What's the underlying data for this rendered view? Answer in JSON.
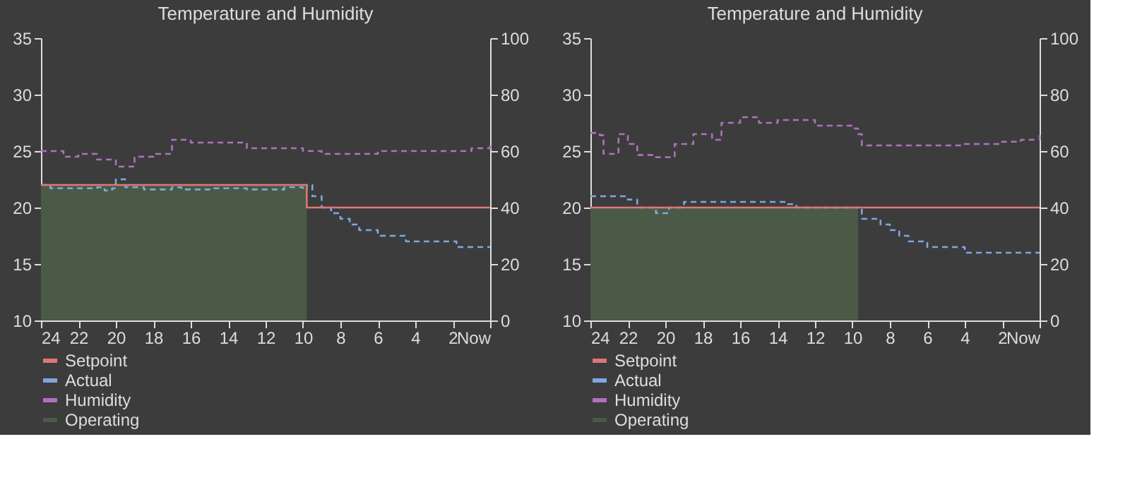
{
  "chart_data": [
    {
      "type": "line",
      "title": "Temperature and Humidity",
      "xlim": [
        24,
        0
      ],
      "xticks": [
        24,
        22,
        20,
        18,
        16,
        14,
        12,
        10,
        8,
        6,
        4,
        2,
        {
          "value": 0,
          "label": "Now"
        }
      ],
      "ylim": [
        10,
        35
      ],
      "yticks": [
        10,
        15,
        20,
        25,
        30,
        35
      ],
      "y2lim": [
        0,
        100
      ],
      "y2ticks": [
        0,
        20,
        40,
        60,
        80,
        100
      ],
      "legend": "bottom",
      "series": [
        {
          "name": "Setpoint",
          "type": "step",
          "color": "#e07777",
          "line_style": "solid",
          "x": [
            24,
            9.8,
            0
          ],
          "values": [
            22,
            20,
            20
          ]
        },
        {
          "name": "Actual",
          "type": "step",
          "color": "#7fa7e0",
          "line_style": "dashed",
          "x": [
            24,
            23.5,
            21,
            20.6,
            20.2,
            20,
            19.5,
            18.5,
            17,
            16.5,
            15,
            13,
            11,
            10,
            9.8,
            9.5,
            9,
            8.5,
            8,
            7.5,
            7,
            6,
            4.5,
            2,
            1.8,
            0
          ],
          "values": [
            22,
            21.7,
            21.8,
            21.5,
            21.7,
            22.5,
            21.8,
            21.6,
            21.8,
            21.6,
            21.7,
            21.6,
            21.8,
            21.6,
            22,
            21,
            20,
            19.5,
            19,
            18.5,
            18,
            17.5,
            17,
            17,
            16.5,
            16.5
          ]
        },
        {
          "name": "Humidity",
          "type": "step",
          "color": "#b070c0",
          "line_style": "dashed",
          "axis": "y2",
          "x": [
            24,
            22.8,
            22,
            21,
            20,
            19,
            18,
            17,
            16,
            15,
            13,
            10,
            9,
            6,
            2,
            1,
            0
          ],
          "values": [
            60,
            58,
            59,
            57,
            54.5,
            58,
            59,
            64,
            63,
            63,
            61,
            60,
            59,
            60,
            60,
            61,
            63
          ]
        },
        {
          "name": "Operating",
          "type": "area",
          "color": "#4a5a46",
          "x": [
            24,
            9.8
          ],
          "values": [
            22,
            22
          ]
        }
      ]
    },
    {
      "type": "line",
      "title": "Temperature and Humidity",
      "xlim": [
        24,
        0
      ],
      "xticks": [
        24,
        22,
        20,
        18,
        16,
        14,
        12,
        10,
        8,
        6,
        4,
        2,
        {
          "value": 0,
          "label": "Now"
        }
      ],
      "ylim": [
        10,
        35
      ],
      "yticks": [
        10,
        15,
        20,
        25,
        30,
        35
      ],
      "y2lim": [
        0,
        100
      ],
      "y2ticks": [
        0,
        20,
        40,
        60,
        80,
        100
      ],
      "legend": "bottom",
      "series": [
        {
          "name": "Setpoint",
          "type": "step",
          "color": "#e07777",
          "line_style": "solid",
          "x": [
            24,
            0
          ],
          "values": [
            20,
            20
          ]
        },
        {
          "name": "Actual",
          "type": "step",
          "color": "#7fa7e0",
          "line_style": "dashed",
          "x": [
            24,
            22.3,
            22,
            21.5,
            20.5,
            19.8,
            19,
            14,
            13.5,
            13,
            9.7,
            9.5,
            8.5,
            8,
            7.5,
            7,
            6,
            4,
            0
          ],
          "values": [
            21,
            21,
            20.7,
            20,
            19.5,
            20,
            20.5,
            20.5,
            20.3,
            20,
            20,
            19,
            18.5,
            18,
            17.5,
            17,
            16.5,
            16,
            16
          ]
        },
        {
          "name": "Humidity",
          "type": "step",
          "color": "#b070c0",
          "line_style": "dashed",
          "axis": "y2",
          "x": [
            24,
            23.5,
            23.3,
            22.5,
            22,
            21.5,
            20.5,
            19.5,
            18.5,
            17.5,
            17,
            16,
            15,
            14,
            12,
            10,
            9.7,
            9.5,
            6.5,
            4,
            2,
            1,
            0
          ],
          "values": [
            66.4,
            65.6,
            59,
            66,
            62.5,
            58.6,
            57.8,
            62.5,
            66,
            64,
            70,
            72,
            70,
            71,
            69,
            68,
            66,
            62,
            62,
            62.5,
            63.3,
            64,
            66
          ]
        },
        {
          "name": "Operating",
          "type": "area",
          "color": "#4a5a46",
          "x": [
            24,
            9.7
          ],
          "values": [
            20,
            20
          ]
        }
      ]
    }
  ]
}
